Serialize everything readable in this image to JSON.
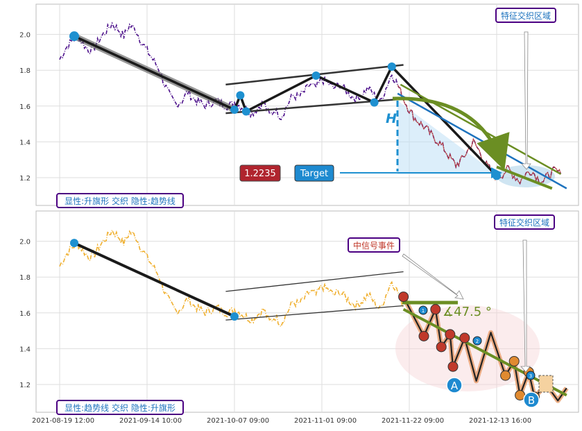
{
  "chart_data": [
    {
      "type": "line",
      "panel": "top",
      "yticks": [
        1.2,
        1.4,
        1.6,
        1.8,
        2.0
      ],
      "ylim": [
        1.05,
        2.17
      ],
      "price_color": "#4b0f8a",
      "price_anchors": [
        [
          0,
          1.86
        ],
        [
          2,
          1.92
        ],
        [
          4,
          1.96
        ],
        [
          6,
          1.99
        ],
        [
          8,
          1.95
        ],
        [
          10,
          1.91
        ],
        [
          12,
          1.93
        ],
        [
          14,
          1.98
        ],
        [
          16,
          2.02
        ],
        [
          18,
          2.06
        ],
        [
          20,
          2.03
        ],
        [
          22,
          1.99
        ],
        [
          24,
          2.05
        ],
        [
          26,
          2.03
        ],
        [
          28,
          1.96
        ],
        [
          30,
          1.91
        ],
        [
          32,
          1.86
        ],
        [
          34,
          1.81
        ],
        [
          36,
          1.72
        ],
        [
          38,
          1.65
        ],
        [
          40,
          1.61
        ],
        [
          42,
          1.63
        ],
        [
          44,
          1.68
        ],
        [
          46,
          1.64
        ],
        [
          48,
          1.62
        ],
        [
          50,
          1.6
        ],
        [
          52,
          1.62
        ],
        [
          54,
          1.63
        ],
        [
          56,
          1.61
        ],
        [
          58,
          1.6
        ],
        [
          60,
          1.62
        ],
        [
          62,
          1.6
        ],
        [
          64,
          1.58
        ],
        [
          66,
          1.56
        ],
        [
          68,
          1.59
        ],
        [
          70,
          1.62
        ],
        [
          72,
          1.55
        ],
        [
          74,
          1.58
        ],
        [
          76,
          1.54
        ],
        [
          78,
          1.6
        ],
        [
          80,
          1.66
        ],
        [
          82,
          1.65
        ],
        [
          84,
          1.68
        ],
        [
          86,
          1.72
        ],
        [
          88,
          1.7
        ],
        [
          90,
          1.75
        ],
        [
          92,
          1.73
        ],
        [
          94,
          1.7
        ],
        [
          96,
          1.72
        ],
        [
          98,
          1.69
        ],
        [
          100,
          1.66
        ],
        [
          102,
          1.64
        ],
        [
          104,
          1.67
        ],
        [
          106,
          1.7
        ],
        [
          108,
          1.66
        ],
        [
          110,
          1.62
        ],
        [
          112,
          1.7
        ],
        [
          114,
          1.78
        ],
        [
          116,
          1.72
        ],
        [
          118,
          1.64
        ],
        [
          120,
          1.58
        ],
        [
          122,
          1.53
        ],
        [
          124,
          1.5
        ],
        [
          126,
          1.47
        ],
        [
          128,
          1.43
        ],
        [
          130,
          1.4
        ],
        [
          132,
          1.36
        ],
        [
          134,
          1.31
        ],
        [
          136,
          1.27
        ],
        [
          138,
          1.3
        ],
        [
          140,
          1.35
        ],
        [
          142,
          1.4
        ],
        [
          144,
          1.35
        ],
        [
          146,
          1.28
        ],
        [
          148,
          1.24
        ],
        [
          150,
          1.2
        ],
        [
          152,
          1.22
        ],
        [
          154,
          1.25
        ],
        [
          156,
          1.21
        ],
        [
          158,
          1.18
        ],
        [
          160,
          1.22
        ],
        [
          162,
          1.24
        ],
        [
          164,
          1.2
        ],
        [
          166,
          1.18
        ],
        [
          168,
          1.22
        ],
        [
          170,
          1.24
        ],
        [
          172,
          1.22
        ]
      ],
      "zigzag": [
        [
          5,
          1.99
        ],
        [
          60,
          1.58
        ],
        [
          62,
          1.66
        ],
        [
          64,
          1.57
        ],
        [
          88,
          1.77
        ],
        [
          108,
          1.62
        ],
        [
          114,
          1.82
        ],
        [
          150,
          1.21
        ]
      ],
      "flag_upper": [
        [
          57,
          1.72
        ],
        [
          118,
          1.83
        ]
      ],
      "flag_lower": [
        [
          57,
          1.56
        ],
        [
          118,
          1.64
        ]
      ],
      "trend_line": [
        [
          116,
          1.67
        ],
        [
          174,
          1.14
        ]
      ],
      "target_value": "1.2235",
      "target_label": "Target",
      "h_label": "H",
      "feature_region_label": "特征交织区域",
      "bottom_label": "显性:升旗形 交织 隐性:趋势线"
    },
    {
      "type": "line",
      "panel": "bottom",
      "yticks": [
        1.2,
        1.4,
        1.6,
        1.8,
        2.0
      ],
      "ylim": [
        1.05,
        2.17
      ],
      "price_color": "#f0b030",
      "zigzag": [
        [
          5,
          1.99
        ],
        [
          60,
          1.58
        ]
      ],
      "flag_upper": [
        [
          57,
          1.72
        ],
        [
          118,
          1.83
        ]
      ],
      "flag_lower": [
        [
          57,
          1.56
        ],
        [
          118,
          1.64
        ]
      ],
      "trend_line": [
        [
          118,
          1.62
        ],
        [
          174,
          1.14
        ]
      ],
      "angle_label": "∡47.5 °",
      "signal_label": "中信号事件",
      "point_a": "A",
      "point_b": "B",
      "wave_numbers": [
        "1",
        "2",
        "3"
      ],
      "feature_region_label": "特征交织区域",
      "bottom_label": "显性:趋势线 交织 隐性:升旗形"
    }
  ],
  "xticks": [
    {
      "i": 0,
      "label": "2021-08-19 12:00"
    },
    {
      "i": 30,
      "label": "2021-09-14 10:00"
    },
    {
      "i": 60,
      "label": "2021-10-07 09:00"
    },
    {
      "i": 90,
      "label": "2021-11-01 09:00"
    },
    {
      "i": 120,
      "label": "2021-11-22 09:00"
    },
    {
      "i": 150,
      "label": "2021-12-13 16:00"
    }
  ]
}
